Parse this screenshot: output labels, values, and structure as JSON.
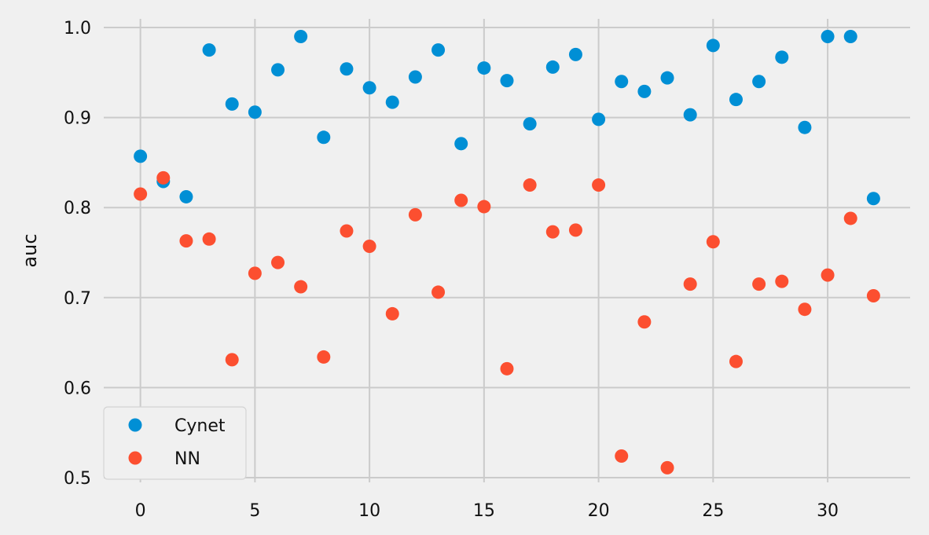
{
  "chart_data": {
    "type": "scatter",
    "title": "",
    "xlabel": "",
    "ylabel": "auc",
    "xlim": [
      -1.6,
      33.6
    ],
    "ylim": [
      0.5,
      1.0
    ],
    "xticks": [
      0,
      5,
      10,
      15,
      20,
      25,
      30
    ],
    "yticks": [
      0.5,
      0.6,
      0.7,
      0.8,
      0.9,
      1.0
    ],
    "grid": true,
    "legend_position": "lower-left",
    "x": [
      0,
      1,
      2,
      3,
      4,
      5,
      6,
      7,
      8,
      9,
      10,
      11,
      12,
      13,
      14,
      15,
      16,
      17,
      18,
      19,
      20,
      21,
      22,
      23,
      24,
      25,
      26,
      27,
      28,
      29,
      30,
      31,
      32
    ],
    "series": [
      {
        "name": "Cynet",
        "color": "#008fd5",
        "values": [
          0.857,
          0.829,
          0.812,
          0.975,
          0.915,
          0.906,
          0.953,
          0.99,
          0.878,
          0.954,
          0.933,
          0.917,
          0.945,
          0.975,
          0.871,
          0.955,
          0.941,
          0.893,
          0.956,
          0.97,
          0.898,
          0.94,
          0.929,
          0.944,
          0.903,
          0.98,
          0.92,
          0.94,
          0.967,
          0.889,
          0.99,
          0.99,
          0.81
        ]
      },
      {
        "name": "NN",
        "color": "#fc4f30",
        "values": [
          0.815,
          0.833,
          0.763,
          0.765,
          0.631,
          0.727,
          0.739,
          0.712,
          0.634,
          0.774,
          0.757,
          0.682,
          0.792,
          0.706,
          0.808,
          0.801,
          0.621,
          0.825,
          0.773,
          0.775,
          0.825,
          0.524,
          0.673,
          0.511,
          0.715,
          0.762,
          0.629,
          0.715,
          0.718,
          0.687,
          0.725,
          0.788,
          0.702
        ]
      }
    ]
  }
}
